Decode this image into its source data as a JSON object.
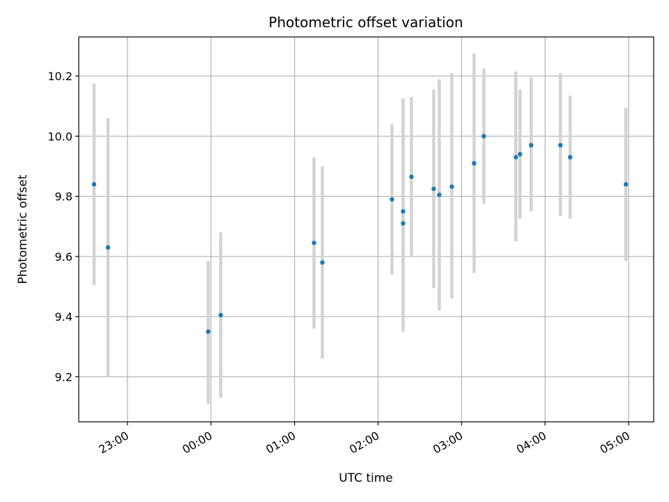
{
  "chart_data": {
    "type": "scatter",
    "title": "Photometric offset variation",
    "xlabel": "UTC time",
    "ylabel": "Photometric offset",
    "x_axis": {
      "type": "time",
      "range": [
        "22:25",
        "05:18"
      ],
      "ticks": [
        "23:00",
        "00:00",
        "01:00",
        "02:00",
        "03:00",
        "04:00",
        "05:00"
      ],
      "tick_label_rotation": "30 degrees"
    },
    "y_axis": {
      "range": [
        9.05,
        10.33
      ],
      "ticks": [
        "9.2",
        "9.4",
        "9.6",
        "9.8",
        "10.0",
        "10.2"
      ]
    },
    "grid": true,
    "colors": {
      "points": "#1f77b4",
      "error_bars": "#d3d3d3",
      "grid": "#b0b0b0"
    },
    "points": [
      {
        "x": "22:36",
        "y": 9.84,
        "ylow": 9.505,
        "yhigh": 10.175
      },
      {
        "x": "22:46",
        "y": 9.63,
        "ylow": 9.2,
        "yhigh": 10.06
      },
      {
        "x": "23:58",
        "y": 9.35,
        "ylow": 9.11,
        "yhigh": 9.585
      },
      {
        "x": "00:07",
        "y": 9.405,
        "ylow": 9.13,
        "yhigh": 9.68
      },
      {
        "x": "01:14",
        "y": 9.645,
        "ylow": 9.36,
        "yhigh": 9.93
      },
      {
        "x": "01:20",
        "y": 9.58,
        "ylow": 9.26,
        "yhigh": 9.9
      },
      {
        "x": "02:10",
        "y": 9.79,
        "ylow": 9.54,
        "yhigh": 10.04
      },
      {
        "x": "02:18",
        "y": 9.75,
        "ylow": 9.35,
        "yhigh": 10.125
      },
      {
        "x": "02:18",
        "y": 9.71,
        "ylow": 9.35,
        "yhigh": 10.125
      },
      {
        "x": "02:24",
        "y": 9.865,
        "ylow": 9.6,
        "yhigh": 10.13
      },
      {
        "x": "02:40",
        "y": 9.825,
        "ylow": 9.495,
        "yhigh": 10.155
      },
      {
        "x": "02:44",
        "y": 9.805,
        "ylow": 9.42,
        "yhigh": 10.19
      },
      {
        "x": "02:53",
        "y": 9.832,
        "ylow": 9.46,
        "yhigh": 10.21
      },
      {
        "x": "03:09",
        "y": 9.91,
        "ylow": 9.545,
        "yhigh": 10.275
      },
      {
        "x": "03:16",
        "y": 10.0,
        "ylow": 9.775,
        "yhigh": 10.225
      },
      {
        "x": "03:39",
        "y": 9.93,
        "ylow": 9.65,
        "yhigh": 10.215
      },
      {
        "x": "03:42",
        "y": 9.94,
        "ylow": 9.725,
        "yhigh": 10.155
      },
      {
        "x": "03:50",
        "y": 9.97,
        "ylow": 9.75,
        "yhigh": 10.195
      },
      {
        "x": "04:11",
        "y": 9.97,
        "ylow": 9.735,
        "yhigh": 10.21
      },
      {
        "x": "04:18",
        "y": 9.93,
        "ylow": 9.725,
        "yhigh": 10.135
      },
      {
        "x": "04:58",
        "y": 9.84,
        "ylow": 9.585,
        "yhigh": 10.095
      }
    ]
  }
}
